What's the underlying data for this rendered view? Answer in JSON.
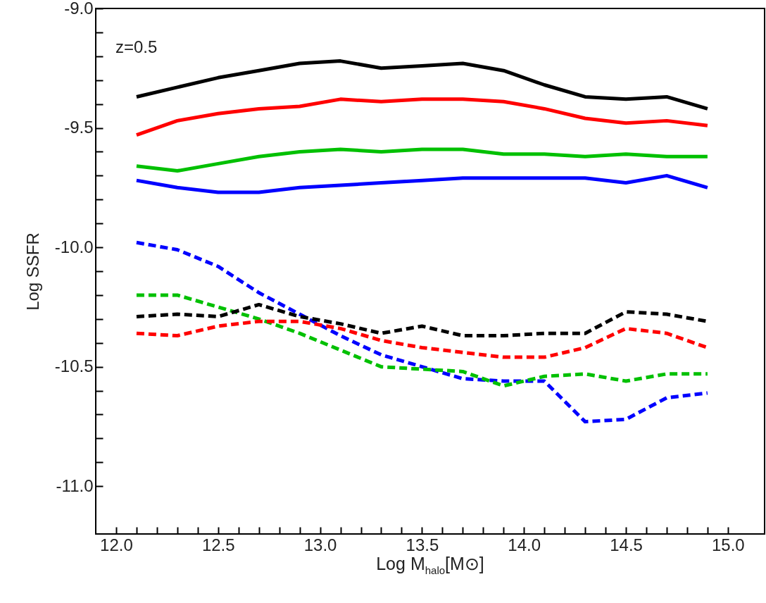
{
  "chart_data": {
    "type": "line",
    "xlabel": "Log M$_{halo}$[M⊙]",
    "ylabel": "Log SSFR",
    "annotations": [
      "z=0.5"
    ],
    "x": [
      12.1,
      12.3,
      12.5,
      12.7,
      12.9,
      13.1,
      13.3,
      13.5,
      13.7,
      13.9,
      14.1,
      14.3,
      14.5,
      14.7,
      14.9
    ],
    "series": [
      {
        "color": "#000000",
        "line_style": "solid",
        "values": [
          -9.37,
          -9.33,
          -9.29,
          -9.26,
          -9.23,
          -9.22,
          -9.25,
          -9.24,
          -9.23,
          -9.26,
          -9.32,
          -9.37,
          -9.38,
          -9.37,
          -9.42
        ]
      },
      {
        "color": "#ff0000",
        "line_style": "solid",
        "values": [
          -9.53,
          -9.47,
          -9.44,
          -9.42,
          -9.41,
          -9.38,
          -9.39,
          -9.38,
          -9.38,
          -9.39,
          -9.42,
          -9.46,
          -9.48,
          -9.47,
          -9.49
        ]
      },
      {
        "color": "#00c000",
        "line_style": "solid",
        "values": [
          -9.66,
          -9.68,
          -9.65,
          -9.62,
          -9.6,
          -9.59,
          -9.6,
          -9.59,
          -9.59,
          -9.61,
          -9.61,
          -9.62,
          -9.61,
          -9.62,
          -9.62
        ]
      },
      {
        "color": "#0000ff",
        "line_style": "solid",
        "values": [
          -9.72,
          -9.75,
          -9.77,
          -9.77,
          -9.75,
          -9.74,
          -9.73,
          -9.72,
          -9.71,
          -9.71,
          -9.71,
          -9.71,
          -9.73,
          -9.7,
          -9.75
        ]
      },
      {
        "color": "#0000ff",
        "line_style": "dashed",
        "values": [
          -9.98,
          -10.01,
          -10.08,
          -10.19,
          -10.28,
          -10.37,
          -10.45,
          -10.5,
          -10.55,
          -10.56,
          -10.56,
          -10.73,
          -10.72,
          -10.63,
          -10.61
        ]
      },
      {
        "color": "#00c000",
        "line_style": "dashed",
        "values": [
          -10.2,
          -10.2,
          -10.25,
          -10.3,
          -10.36,
          -10.43,
          -10.5,
          -10.51,
          -10.52,
          -10.58,
          -10.54,
          -10.53,
          -10.56,
          -10.53,
          -10.53
        ]
      },
      {
        "color": "#000000",
        "line_style": "dashed",
        "values": [
          -10.29,
          -10.28,
          -10.29,
          -10.24,
          -10.29,
          -10.32,
          -10.36,
          -10.33,
          -10.37,
          -10.37,
          -10.36,
          -10.36,
          -10.27,
          -10.28,
          -10.31
        ]
      },
      {
        "color": "#ff0000",
        "line_style": "dashed",
        "values": [
          -10.36,
          -10.37,
          -10.33,
          -10.31,
          -10.31,
          -10.34,
          -10.39,
          -10.42,
          -10.44,
          -10.46,
          -10.46,
          -10.42,
          -10.34,
          -10.36,
          -10.42
        ]
      }
    ],
    "xlim": [
      11.9,
      15.18
    ],
    "xticks": [
      {
        "value": 12,
        "label": "12.0"
      },
      {
        "value": 12.1,
        "label": null
      },
      {
        "value": 12.2,
        "label": null
      },
      {
        "value": 12.3,
        "label": null
      },
      {
        "value": 12.4,
        "label": null
      },
      12.5,
      {
        "value": 12.6,
        "label": null
      },
      {
        "value": 12.7,
        "label": null
      },
      {
        "value": 12.8,
        "label": null
      },
      {
        "value": 12.9,
        "label": null
      },
      {
        "value": 13,
        "label": "13.0"
      },
      {
        "value": 13.1,
        "label": null
      },
      {
        "value": 13.2,
        "label": null
      },
      {
        "value": 13.3,
        "label": null
      },
      {
        "value": 13.4,
        "label": null
      },
      13.5,
      {
        "value": 13.6,
        "label": null
      },
      {
        "value": 13.7,
        "label": null
      },
      {
        "value": 13.8,
        "label": null
      },
      {
        "value": 13.9,
        "label": null
      },
      {
        "value": 14,
        "label": "14.0"
      },
      {
        "value": 14.1,
        "label": null
      },
      {
        "value": 14.2,
        "label": null
      },
      {
        "value": 14.3,
        "label": null
      },
      {
        "value": 14.4,
        "label": null
      },
      14.5,
      {
        "value": 14.6,
        "label": null
      },
      {
        "value": 14.7,
        "label": null
      },
      {
        "value": 14.8,
        "label": null
      },
      {
        "value": 14.9,
        "label": null
      },
      {
        "value": 15,
        "label": "15.0"
      }
    ],
    "ylim": [
      -11.2,
      -9.0
    ],
    "yticks": [
      {
        "value": -11,
        "label": "-11.0"
      },
      {
        "value": -10.9,
        "label": null
      },
      {
        "value": -10.8,
        "label": null
      },
      {
        "value": -10.7,
        "label": null
      },
      {
        "value": -10.6,
        "label": null
      },
      {
        "value": -10.5,
        "label": "-10.5"
      },
      {
        "value": -10.4,
        "label": null
      },
      {
        "value": -10.3,
        "label": null
      },
      {
        "value": -10.2,
        "label": null
      },
      {
        "value": -10.1,
        "label": null
      },
      {
        "value": -10,
        "label": "-10.0"
      },
      {
        "value": -9.9,
        "label": null
      },
      {
        "value": -9.8,
        "label": null
      },
      {
        "value": -9.7,
        "label": null
      },
      {
        "value": -9.6,
        "label": null
      },
      {
        "value": -9.5,
        "label": "-9.5"
      },
      {
        "value": -9.4,
        "label": null
      },
      {
        "value": -9.3,
        "label": null
      },
      {
        "value": -9.2,
        "label": null
      },
      {
        "value": -9.1,
        "label": null
      },
      {
        "value": -9,
        "label": "-9.0"
      }
    ],
    "grid": false
  }
}
